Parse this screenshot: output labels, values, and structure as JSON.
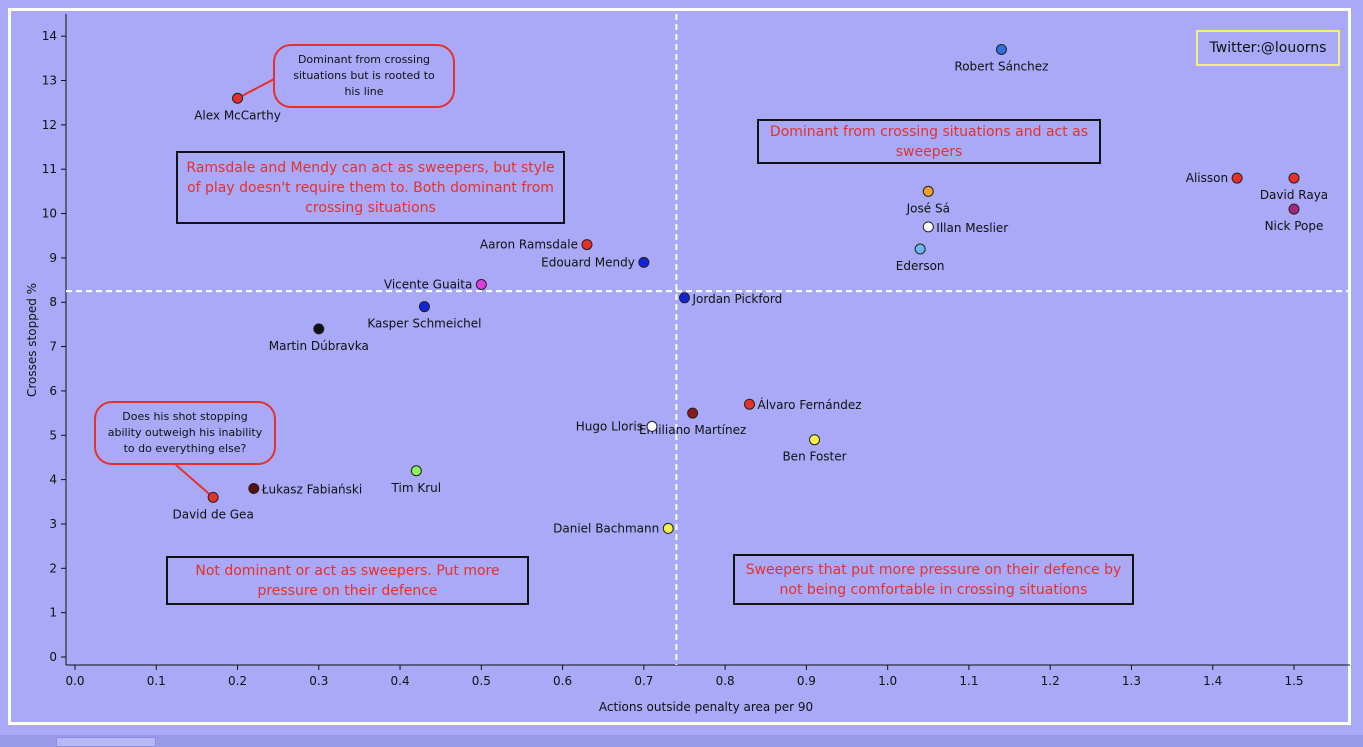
{
  "chart_data": {
    "type": "scatter",
    "xlabel": "Actions outside penalty area per 90",
    "ylabel": "Crosses stopped %",
    "xlim": [
      0.0,
      1.58
    ],
    "ylim": [
      0,
      14.5
    ],
    "xticks": [
      "0.0",
      "0.1",
      "0.2",
      "0.3",
      "0.4",
      "0.5",
      "0.6",
      "0.7",
      "0.8",
      "0.9",
      "1.0",
      "1.1",
      "1.2",
      "1.3",
      "1.4",
      "1.5"
    ],
    "yticks": [
      "0",
      "1",
      "2",
      "3",
      "4",
      "5",
      "6",
      "7",
      "8",
      "9",
      "10",
      "11",
      "12",
      "13",
      "14"
    ],
    "reference_lines": {
      "x": 0.74,
      "y": 8.25
    },
    "points": [
      {
        "name": "Robert Sánchez",
        "x": 1.14,
        "y": 13.7,
        "color": "#2f6fe0",
        "label_pos": "below"
      },
      {
        "name": "Alex McCarthy",
        "x": 0.2,
        "y": 12.6,
        "color": "#e4322b",
        "label_pos": "below"
      },
      {
        "name": "Alisson",
        "x": 1.43,
        "y": 10.8,
        "color": "#e4322b",
        "label_pos": "left"
      },
      {
        "name": "David Raya",
        "x": 1.5,
        "y": 10.8,
        "color": "#e4322b",
        "label_pos": "below"
      },
      {
        "name": "José Sá",
        "x": 1.05,
        "y": 10.5,
        "color": "#f2a12b",
        "label_pos": "below"
      },
      {
        "name": "Nick Pope",
        "x": 1.5,
        "y": 10.1,
        "color": "#a6267a",
        "label_pos": "below"
      },
      {
        "name": "Illan Meslier",
        "x": 1.05,
        "y": 9.7,
        "color": "#ffffff",
        "label_pos": "right"
      },
      {
        "name": "Aaron Ramsdale",
        "x": 0.63,
        "y": 9.3,
        "color": "#e4322b",
        "label_pos": "left"
      },
      {
        "name": "Ederson",
        "x": 1.04,
        "y": 9.2,
        "color": "#6cb6ec",
        "label_pos": "below"
      },
      {
        "name": "Edouard Mendy",
        "x": 0.7,
        "y": 8.9,
        "color": "#1026d6",
        "label_pos": "left"
      },
      {
        "name": "Vicente Guaita",
        "x": 0.5,
        "y": 8.4,
        "color": "#e23be0",
        "label_pos": "left"
      },
      {
        "name": "Jordan Pickford",
        "x": 0.75,
        "y": 8.1,
        "color": "#1026d6",
        "label_pos": "right"
      },
      {
        "name": "Kasper Schmeichel",
        "x": 0.43,
        "y": 7.9,
        "color": "#1026d6",
        "label_pos": "below"
      },
      {
        "name": "Martin Dúbravka",
        "x": 0.3,
        "y": 7.4,
        "color": "#111111",
        "label_pos": "below"
      },
      {
        "name": "Álvaro Fernández",
        "x": 0.83,
        "y": 5.7,
        "color": "#e4322b",
        "label_pos": "right"
      },
      {
        "name": "Emiliano Martínez",
        "x": 0.76,
        "y": 5.5,
        "color": "#8a1a1a",
        "label_pos": "below"
      },
      {
        "name": "Hugo Lloris",
        "x": 0.71,
        "y": 5.2,
        "color": "#ffffff",
        "label_pos": "left"
      },
      {
        "name": "Ben Foster",
        "x": 0.91,
        "y": 4.9,
        "color": "#f4f04a",
        "label_pos": "below"
      },
      {
        "name": "Tim Krul",
        "x": 0.42,
        "y": 4.2,
        "color": "#8ef25a",
        "label_pos": "below"
      },
      {
        "name": "Łukasz Fabiański",
        "x": 0.22,
        "y": 3.8,
        "color": "#5a0f0f",
        "label_pos": "right"
      },
      {
        "name": "David de Gea",
        "x": 0.17,
        "y": 3.6,
        "color": "#e4322b",
        "label_pos": "below"
      },
      {
        "name": "Daniel Bachmann",
        "x": 0.73,
        "y": 2.9,
        "color": "#f4f04a",
        "label_pos": "left"
      }
    ]
  },
  "annotations": {
    "top_left": "Ramsdale and Mendy can act as sweepers, but style of play doesn't require them to. Both dominant from crossing situations",
    "top_right": "Dominant from crossing situations and act as sweepers",
    "bottom_left": "Not dominant or act as sweepers. Put more pressure on their defence",
    "bottom_right": "Sweepers that put more pressure on their defence by not being comfortable in crossing situations",
    "bubble_mccarthy": "Dominant from crossing situations but is rooted to his line",
    "bubble_degea": "Does his shot stopping ability outweigh his inability to do everything else?",
    "twitter": "Twitter:@louorns"
  }
}
